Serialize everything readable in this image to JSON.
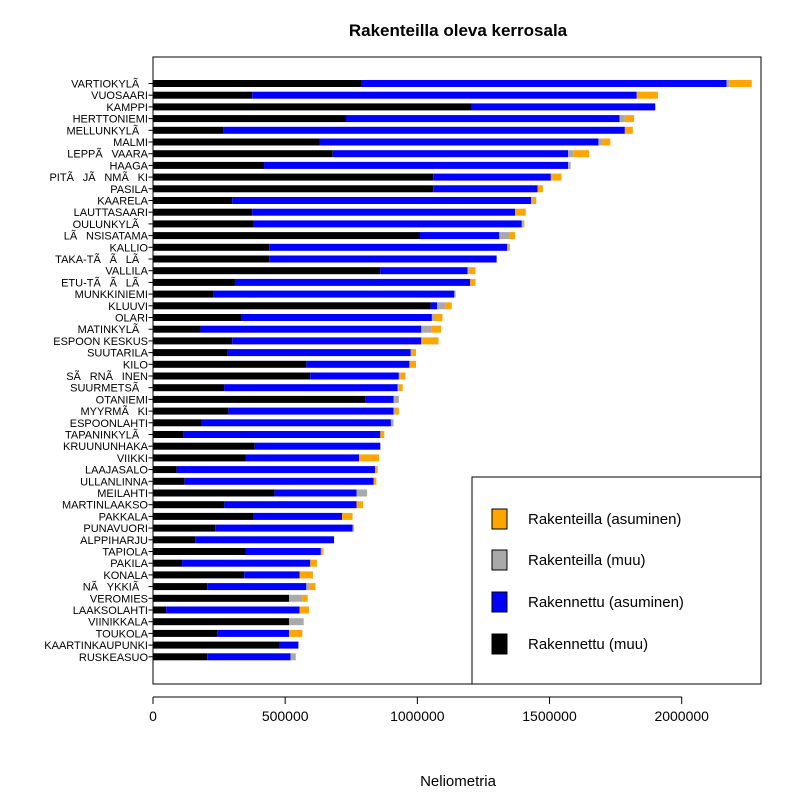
{
  "chart_data": {
    "type": "bar",
    "orientation": "horizontal",
    "stacked": true,
    "title": "Rakenteilla oleva kerrosala",
    "xlabel": "Neliometria",
    "ylabel": "",
    "xlim": [
      0,
      2300000
    ],
    "xticks": [
      0,
      500000,
      1000000,
      1500000,
      2000000
    ],
    "xtick_labels": [
      "0",
      "500000",
      "1000000",
      "1500000",
      "2000000"
    ],
    "legend_position": "bottom-right",
    "categories": [
      "VARTIOKYLÃ",
      "VUOSAARI",
      "KAMPPI",
      "HERTTONIEMI",
      "MELLUNKYLÃ",
      "MALMI",
      "LEPPÃVAARA",
      "HAAGA",
      "PITÃJÃNMÃKI",
      "PASILA",
      "KAARELA",
      "LAUTTASAARI",
      "OULUNKYLÃ",
      "LÃNSISATAMA",
      "KALLIO",
      "TAKA-TÃÃLÃ",
      "VALLILA",
      "ETU-TÃÃLÃ",
      "MUNKKINIEMI",
      "KLUUVI",
      "OLARI",
      "MATINKYLÃ",
      "ESPOON  KESKUS",
      "SUUTARILA",
      "KILO",
      "SÃRNÃINEN",
      "SUURMETSÃ",
      "OTANIEMI",
      "MYYRMÃKI",
      "ESPOONLAHTI",
      "TAPANINKYLÃ",
      "KRUUNUNHAKA",
      "VIIKKI",
      "LAAJASALO",
      "ULLANLINNA",
      "MEILAHTI",
      "MARTINLAAKSO",
      "PAKKALA",
      "PUNAVUORI",
      "ALPPIHARJU",
      "TAPIOLA",
      "PAKILA",
      "KONALA",
      "NÃYKKIÃ",
      "VEROMIES",
      "LAAKSOLAHTI",
      "VIINIKKALA",
      "TOUKOLA",
      "KAARTINKAUPUNKI",
      "RUSKEASUO"
    ],
    "series": [
      {
        "name": "Rakennettu (muu)",
        "color": "#000000",
        "values": [
          790000,
          375000,
          1205000,
          730000,
          265000,
          630000,
          680000,
          420000,
          1060000,
          1060000,
          300000,
          375000,
          380000,
          1010000,
          440000,
          440000,
          860000,
          310000,
          230000,
          1050000,
          335000,
          180000,
          300000,
          280000,
          580000,
          595000,
          270000,
          805000,
          285000,
          185000,
          115000,
          385000,
          350000,
          90000,
          120000,
          460000,
          270000,
          380000,
          235000,
          160000,
          350000,
          110000,
          345000,
          205000,
          515000,
          50000,
          515000,
          245000,
          480000,
          205000
        ]
      },
      {
        "name": "Rakennettu (asuminen)",
        "color": "#0000ff",
        "values": [
          1380000,
          1455000,
          695000,
          1035000,
          1520000,
          1055000,
          890000,
          1150000,
          445000,
          395000,
          1130000,
          995000,
          1015000,
          300000,
          900000,
          860000,
          330000,
          890000,
          910000,
          25000,
          720000,
          835000,
          715000,
          695000,
          390000,
          335000,
          655000,
          105000,
          625000,
          715000,
          745000,
          475000,
          430000,
          750000,
          715000,
          310000,
          500000,
          335000,
          520000,
          525000,
          285000,
          485000,
          210000,
          375000,
          0,
          505000,
          0,
          270000,
          70000,
          315000
        ]
      },
      {
        "name": "Rakenteilla (muu)",
        "color": "#a9a9a9",
        "values": [
          10000,
          0,
          0,
          20000,
          0,
          15000,
          20000,
          10000,
          5000,
          0,
          5000,
          0,
          5000,
          40000,
          5000,
          0,
          5000,
          0,
          5000,
          30000,
          10000,
          40000,
          0,
          5000,
          0,
          5000,
          5000,
          20000,
          5000,
          10000,
          0,
          0,
          0,
          0,
          0,
          40000,
          0,
          0,
          5000,
          0,
          5000,
          0,
          0,
          10000,
          50000,
          0,
          55000,
          0,
          0,
          20000
        ]
      },
      {
        "name": "Rakenteilla (asuminen)",
        "color": "#ffa500",
        "values": [
          85000,
          80000,
          0,
          35000,
          30000,
          30000,
          60000,
          0,
          35000,
          20000,
          15000,
          40000,
          5000,
          20000,
          5000,
          0,
          25000,
          20000,
          0,
          25000,
          30000,
          35000,
          65000,
          15000,
          25000,
          20000,
          15000,
          0,
          15000,
          0,
          15000,
          0,
          75000,
          10000,
          10000,
          0,
          25000,
          40000,
          0,
          0,
          5000,
          25000,
          50000,
          25000,
          20000,
          35000,
          0,
          50000,
          0,
          0
        ]
      }
    ],
    "legend": [
      {
        "label": "Rakenteilla (asuminen)",
        "color": "#ffa500"
      },
      {
        "label": "Rakenteilla (muu)",
        "color": "#a9a9a9"
      },
      {
        "label": "Rakennettu (asuminen)",
        "color": "#0000ff"
      },
      {
        "label": "Rakennettu (muu)",
        "color": "#000000"
      }
    ]
  }
}
